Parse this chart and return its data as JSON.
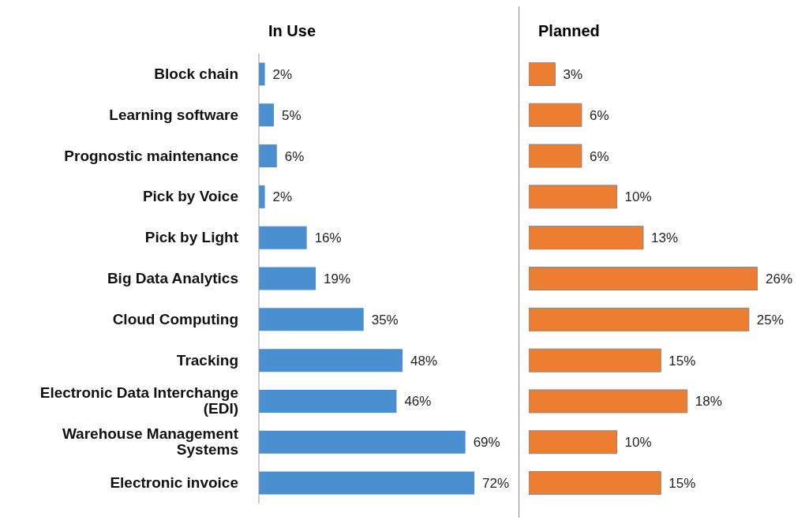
{
  "chart_data": [
    {
      "type": "bar",
      "title": "In Use",
      "orientation": "horizontal",
      "categories": [
        "Block chain",
        "Learning software",
        "Prognostic maintenance",
        "Pick by Voice",
        "Pick by Light",
        "Big Data Analytics",
        "Cloud Computing",
        "Tracking",
        "Electronic Data Interchange (EDI)",
        "Warehouse Management Systems",
        "Electronic invoice"
      ],
      "values": [
        2,
        5,
        6,
        2,
        16,
        19,
        35,
        48,
        46,
        69,
        72
      ],
      "value_labels": [
        "2%",
        "5%",
        "6%",
        "2%",
        "16%",
        "19%",
        "35%",
        "48%",
        "46%",
        "69%",
        "72%"
      ],
      "color": "#4a8fcf",
      "grid": false
    },
    {
      "type": "bar",
      "title": "Planned",
      "orientation": "horizontal",
      "tick_labels": false,
      "categories": [
        null,
        null,
        null,
        null,
        null,
        null,
        null,
        null,
        null,
        null,
        null
      ],
      "values": [
        3,
        6,
        6,
        10,
        13,
        26,
        25,
        15,
        18,
        10,
        15
      ],
      "value_labels": [
        "3%",
        "6%",
        "6%",
        "10%",
        "13%",
        "26%",
        "25%",
        "15%",
        "18%",
        "10%",
        "15%"
      ],
      "color": "#ed7d31",
      "grid": false
    }
  ]
}
